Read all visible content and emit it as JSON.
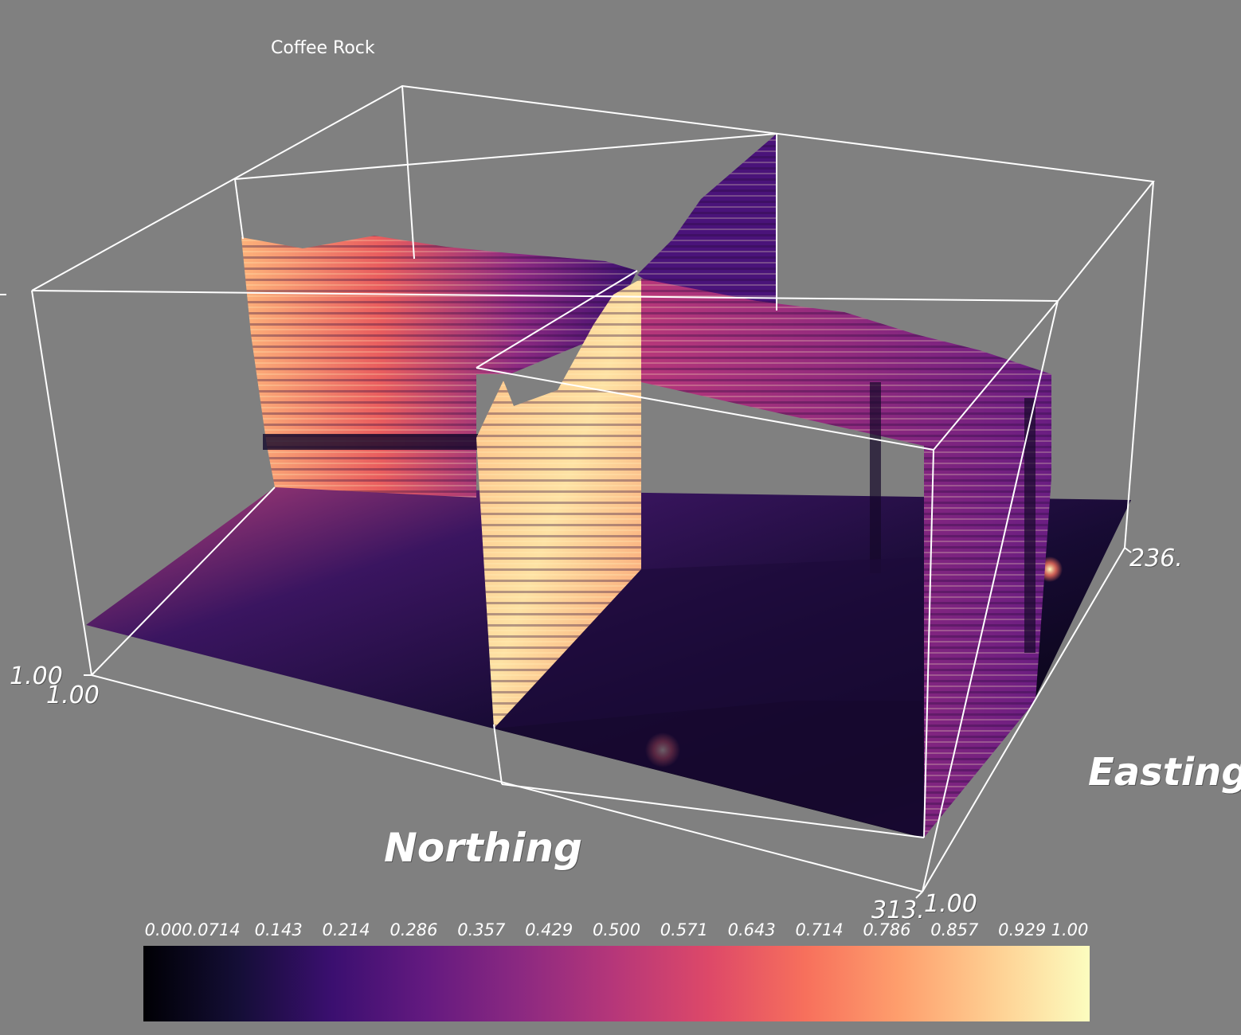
{
  "title": "Coffee Rock",
  "axes": {
    "northing": {
      "title": "Northing",
      "min_label": "1.00",
      "max_label": "313."
    },
    "easting": {
      "title": "Easting",
      "min_label": "1.00",
      "max_label": "236."
    },
    "vertical": {
      "min_label": "1.00"
    }
  },
  "chart_data": {
    "type": "heatmap",
    "title": "Coffee Rock",
    "xlabel": "Northing",
    "ylabel": "Easting",
    "x_range": [
      1,
      313
    ],
    "y_range": [
      1,
      236
    ],
    "colormap": "magma",
    "colorbar": {
      "range": [
        0,
        1
      ],
      "tick_labels": [
        "0.00",
        "0.0714",
        "0.143",
        "0.214",
        "0.286",
        "0.357",
        "0.429",
        "0.500",
        "0.571",
        "0.643",
        "0.714",
        "0.786",
        "0.857",
        "0.929",
        "1.00"
      ],
      "colors": [
        "#000004",
        "#140e36",
        "#3b0f70",
        "#641a80",
        "#8c2981",
        "#b73779",
        "#de4968",
        "#f7705c",
        "#fe9f6d",
        "#fecf92",
        "#fcfdbf"
      ]
    },
    "grid": false
  }
}
